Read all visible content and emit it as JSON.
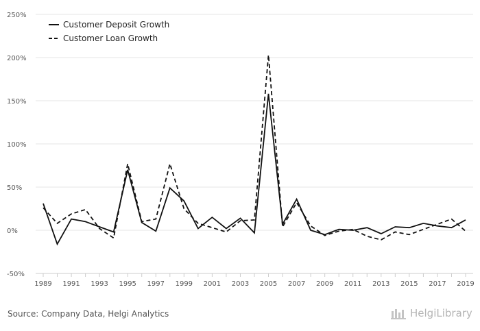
{
  "chart_data": {
    "type": "line",
    "title": "",
    "xlabel": "",
    "ylabel": "",
    "ylim": [
      -50,
      250
    ],
    "yticks": [
      "250%",
      "200%",
      "150%",
      "100%",
      "50%",
      "0%",
      "-50%"
    ],
    "ytick_values": [
      250,
      200,
      150,
      100,
      50,
      0,
      -50
    ],
    "xtick_labels": [
      "1989",
      "1991",
      "1993",
      "1995",
      "1997",
      "1999",
      "2001",
      "2003",
      "2005",
      "2007",
      "2009",
      "2011",
      "2013",
      "2015",
      "2017",
      "2019"
    ],
    "x": [
      1989,
      1990,
      1991,
      1992,
      1993,
      1994,
      1995,
      1996,
      1997,
      1998,
      1999,
      2000,
      2001,
      2002,
      2003,
      2004,
      2005,
      2006,
      2007,
      2008,
      2009,
      2010,
      2011,
      2012,
      2013,
      2014,
      2015,
      2016,
      2017,
      2018,
      2019
    ],
    "series": [
      {
        "name": "Customer Deposit Growth",
        "style": "solid",
        "values": [
          31,
          -16,
          13,
          10,
          4,
          -2,
          70,
          9,
          -1,
          49,
          34,
          2,
          15,
          2,
          14,
          -3,
          158,
          7,
          36,
          0,
          -5,
          1,
          0,
          3,
          -4,
          4,
          3,
          8,
          5,
          3,
          12
        ]
      },
      {
        "name": "Customer Loan Growth",
        "style": "dashed",
        "values": [
          26,
          8,
          19,
          24,
          2,
          -9,
          77,
          10,
          13,
          77,
          25,
          8,
          3,
          -2,
          11,
          12,
          203,
          4,
          32,
          5,
          -6,
          -1,
          1,
          -7,
          -11,
          -2,
          -5,
          1,
          7,
          13,
          -1
        ]
      }
    ],
    "legend_position": "top-left"
  },
  "footer": {
    "source": "Source: Company Data, Helgi Analytics",
    "brand": "HelgiLibrary"
  },
  "colors": {
    "line": "#111111",
    "grid": "#e6e6e6",
    "axis": "#cccccc"
  }
}
